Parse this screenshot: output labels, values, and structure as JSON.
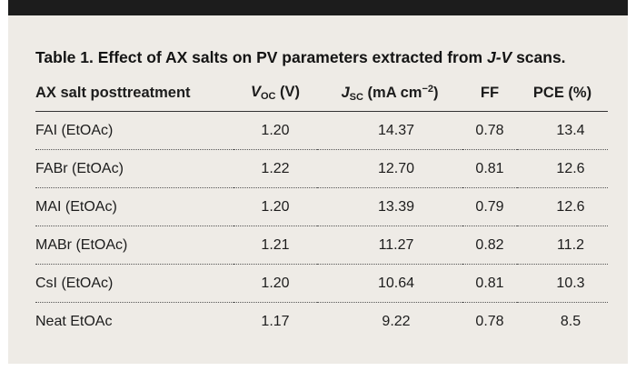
{
  "table": {
    "title_prefix": "Table 1. Effect of AX salts on PV parameters extracted from ",
    "title_italic": "J-V",
    "title_suffix": " scans.",
    "headers": {
      "salt": "AX salt posttreatment",
      "voc_symbol": "V",
      "voc_sub": "OC",
      "voc_unit": " (V)",
      "jsc_symbol": "J",
      "jsc_sub": "SC",
      "jsc_unit": " (mA cm",
      "jsc_sup": "−2",
      "jsc_close": ")",
      "ff": "FF",
      "pce": "PCE (%)"
    },
    "rows": [
      {
        "salt": "FAI (EtOAc)",
        "voc": "1.20",
        "jsc": "14.37",
        "ff": "0.78",
        "pce": "13.4"
      },
      {
        "salt": "FABr (EtOAc)",
        "voc": "1.22",
        "jsc": "12.70",
        "ff": "0.81",
        "pce": "12.6"
      },
      {
        "salt": "MAI (EtOAc)",
        "voc": "1.20",
        "jsc": "13.39",
        "ff": "0.79",
        "pce": "12.6"
      },
      {
        "salt": "MABr (EtOAc)",
        "voc": "1.21",
        "jsc": "11.27",
        "ff": "0.82",
        "pce": "11.2"
      },
      {
        "salt": "CsI (EtOAc)",
        "voc": "1.20",
        "jsc": "10.64",
        "ff": "0.81",
        "pce": "10.3"
      },
      {
        "salt": "Neat EtOAc",
        "voc": "1.17",
        "jsc": "9.22",
        "ff": "0.78",
        "pce": "8.5"
      }
    ]
  }
}
